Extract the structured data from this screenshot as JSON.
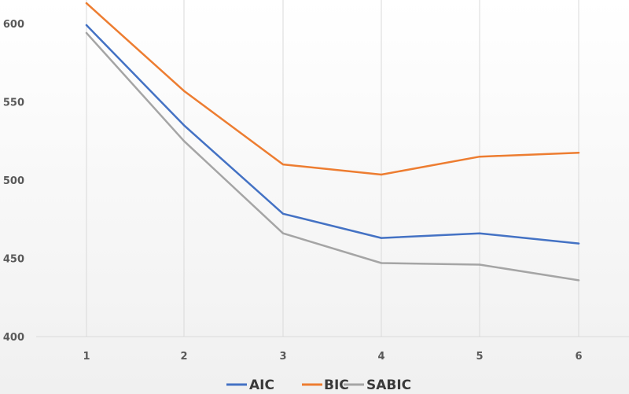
{
  "chart_data": {
    "type": "line",
    "title": "",
    "xlabel": "",
    "ylabel": "",
    "x": [
      "1",
      "2",
      "3",
      "4",
      "5",
      "6"
    ],
    "ylim": [
      400,
      600
    ],
    "yticks": [
      "400",
      "450",
      "500",
      "550",
      "600"
    ],
    "grid": "vertical",
    "legend": "bottom-center",
    "series": [
      {
        "name": "AIC",
        "color": "#4472C4",
        "values": [
          599,
          535,
          478.5,
          463,
          466,
          459.5
        ]
      },
      {
        "name": "BIC",
        "color": "#ED7D31",
        "values": [
          613,
          557,
          510,
          503.5,
          515,
          517.5
        ]
      },
      {
        "name": "SABIC",
        "color": "#A5A5A5",
        "values": [
          594,
          525,
          466,
          447,
          446,
          436
        ]
      }
    ]
  }
}
